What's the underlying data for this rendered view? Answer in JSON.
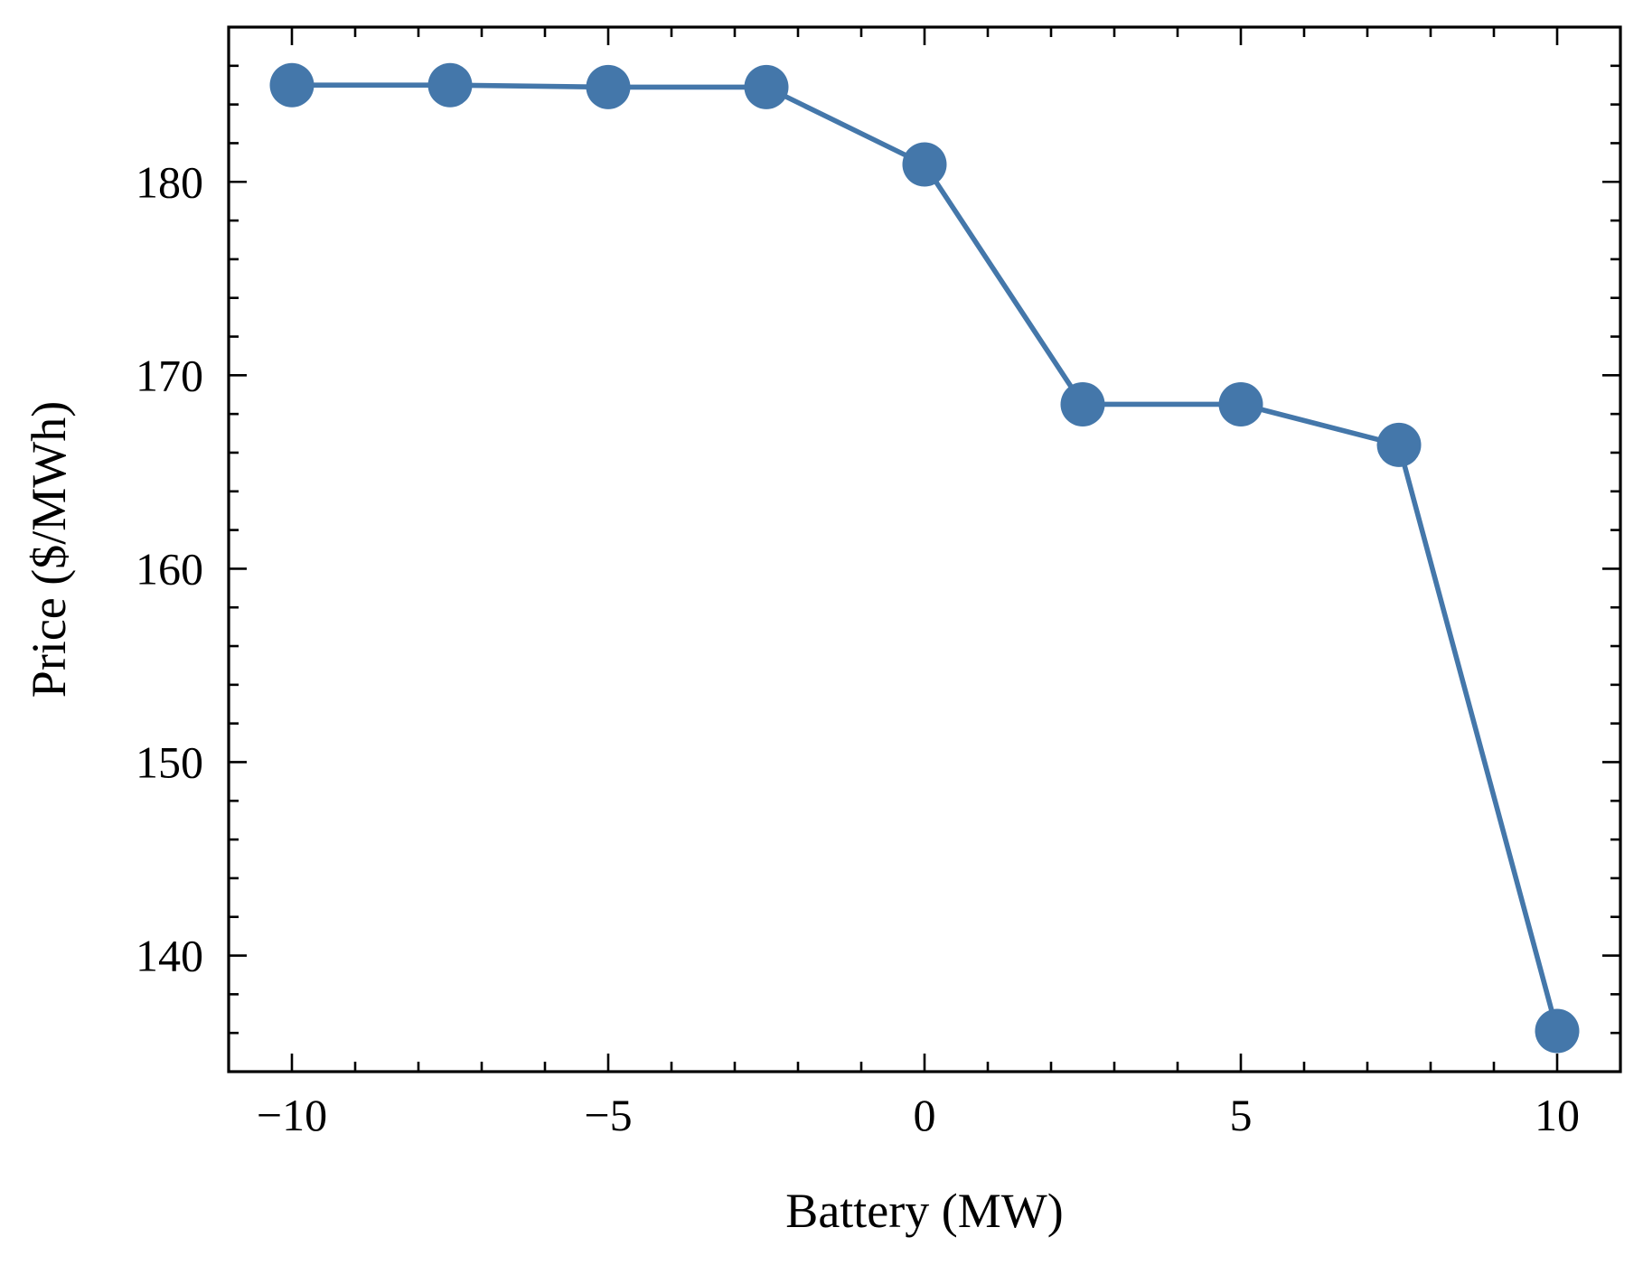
{
  "chart_data": {
    "type": "line",
    "title": "",
    "xlabel": "Battery (MW)",
    "ylabel": "Price ($/MWh)",
    "xlim": [
      -11,
      11
    ],
    "ylim": [
      134,
      188
    ],
    "xticks": [
      -10,
      -5,
      0,
      5,
      10
    ],
    "xtick_labels": [
      "−10",
      "−5",
      "0",
      "5",
      "10"
    ],
    "x_minor_step": 1,
    "yticks": [
      140,
      150,
      160,
      170,
      180
    ],
    "ytick_labels": [
      "140",
      "150",
      "160",
      "170",
      "180"
    ],
    "y_minor_step": 2,
    "tick_direction": "in",
    "grid": false,
    "legend": "none",
    "series": [
      {
        "color": "#4477aa",
        "marker": "circle",
        "x": [
          -10,
          -7.5,
          -5,
          -2.5,
          0,
          2.5,
          5,
          7.5,
          10
        ],
        "y": [
          185.0,
          185.0,
          184.9,
          184.9,
          180.9,
          168.5,
          168.5,
          166.4,
          136.1
        ]
      }
    ]
  }
}
